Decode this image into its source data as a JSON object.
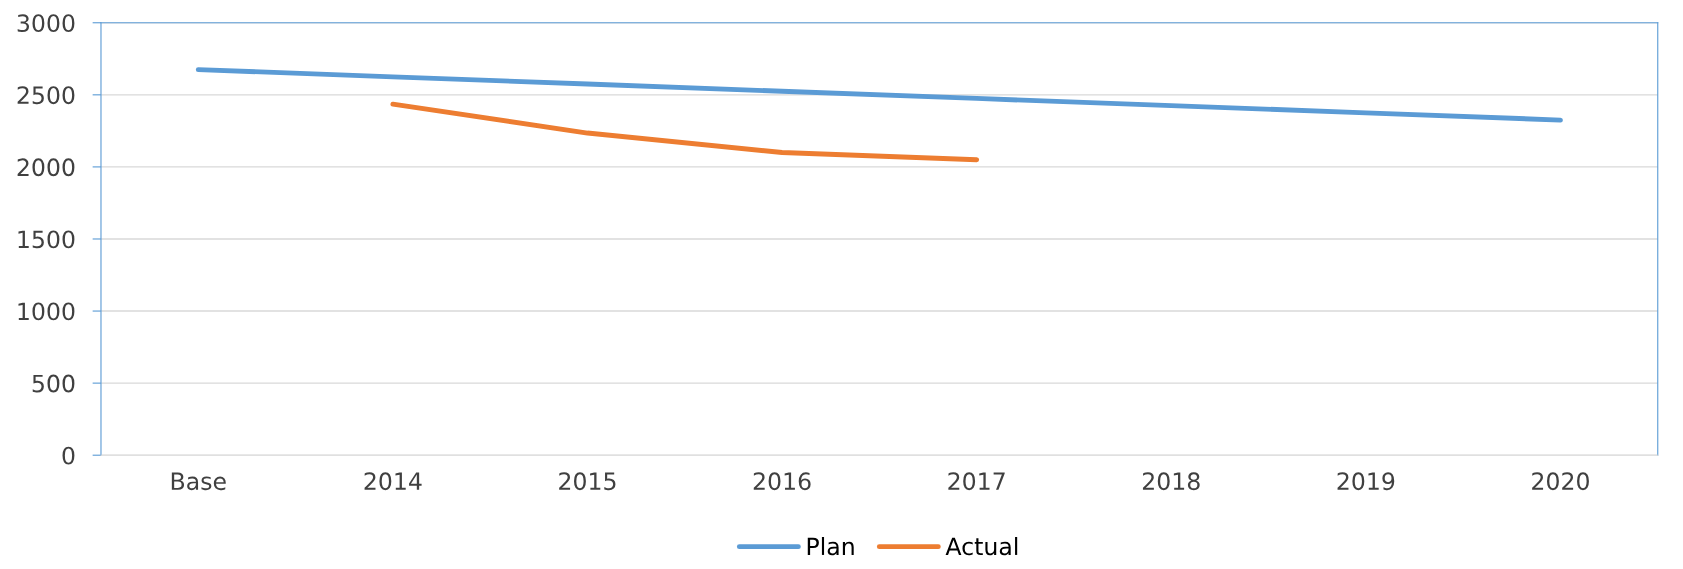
{
  "chart_data": {
    "type": "line",
    "categories": [
      "Base",
      "2014",
      "2015",
      "2016",
      "2017",
      "2018",
      "2019",
      "2020"
    ],
    "series": [
      {
        "name": "Plan",
        "color": "#5b9bd5",
        "values": [
          2675,
          2625,
          2575,
          2525,
          2475,
          2425,
          2375,
          2325
        ]
      },
      {
        "name": "Actual",
        "color": "#ed7d31",
        "values": [
          null,
          2435,
          2235,
          2100,
          2050,
          null,
          null,
          null
        ]
      }
    ],
    "ylim": [
      0,
      3000
    ],
    "yticks": [
      0,
      500,
      1000,
      1500,
      2000,
      2500,
      3000
    ],
    "grid": "y",
    "legend": "bottom",
    "marker": "none",
    "line_style": "solid"
  }
}
